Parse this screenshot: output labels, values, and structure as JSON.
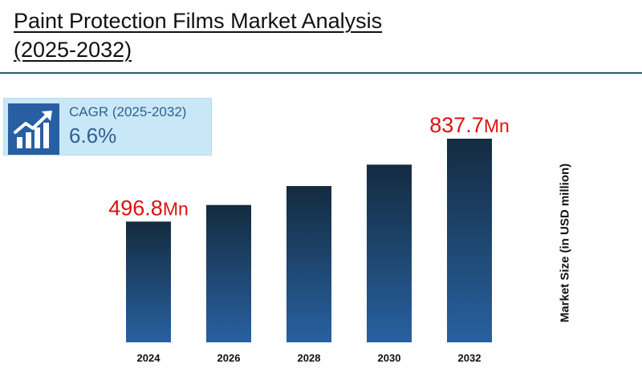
{
  "header": {
    "title_line1": "Paint Protection Films Market Analysis",
    "title_line2": "(2025-2032)"
  },
  "cagr": {
    "label": "CAGR (2025-2032)",
    "value": "6.6%",
    "icon": "growth-chart-icon"
  },
  "chart_data": {
    "type": "bar",
    "categories": [
      "2024",
      "2026",
      "2028",
      "2030",
      "2032"
    ],
    "values": [
      496.8,
      565,
      643,
      731,
      837.7
    ],
    "data_labels": [
      {
        "index": 0,
        "number": "496.8",
        "unit": "Mn"
      },
      {
        "index": 4,
        "number": "837.7",
        "unit": "Mn"
      }
    ],
    "title": "",
    "xlabel": "",
    "ylabel": "Market Size (in USD million)",
    "ylim": [
      0,
      900
    ],
    "grid": false,
    "colors": {
      "bar_top": "#142b40",
      "bar_bottom": "#2861a0",
      "label": "#dd1111"
    }
  }
}
